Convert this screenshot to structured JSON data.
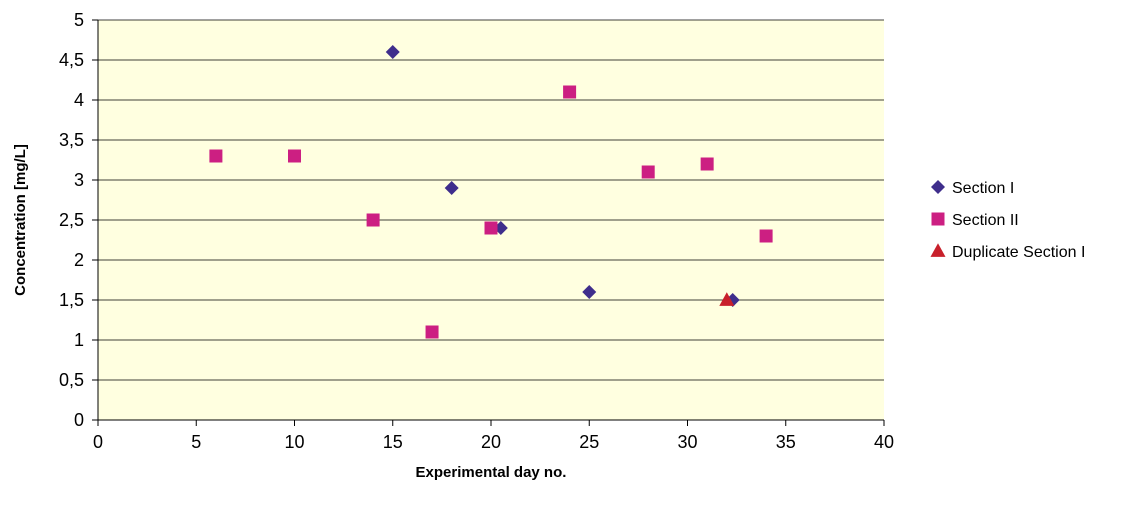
{
  "chart_data": {
    "type": "scatter",
    "title": "",
    "xlabel": "Experimental day no.",
    "ylabel": "Concentration [mg/L]",
    "xlim": [
      0,
      40
    ],
    "ylim": [
      0,
      5
    ],
    "x_ticks": [
      "0",
      "5",
      "10",
      "15",
      "20",
      "25",
      "30",
      "35",
      "40"
    ],
    "y_ticks": [
      "0",
      "0,5",
      "1",
      "1,5",
      "2",
      "2,5",
      "3",
      "3,5",
      "4",
      "4,5",
      "5"
    ],
    "grid": "horizontal",
    "plot_background": "#FFFFE0",
    "legend_position": "right",
    "series": [
      {
        "name": "Section I",
        "marker": "diamond",
        "color": "#3F2E8C",
        "points": [
          {
            "x": 15,
            "y": 4.6
          },
          {
            "x": 18,
            "y": 2.9
          },
          {
            "x": 20.5,
            "y": 2.4
          },
          {
            "x": 25,
            "y": 1.6
          },
          {
            "x": 32.3,
            "y": 1.5
          }
        ]
      },
      {
        "name": "Section II",
        "marker": "square",
        "color": "#CC1F82",
        "points": [
          {
            "x": 6,
            "y": 3.3
          },
          {
            "x": 10,
            "y": 3.3
          },
          {
            "x": 14,
            "y": 2.5
          },
          {
            "x": 17,
            "y": 1.1
          },
          {
            "x": 20,
            "y": 2.4
          },
          {
            "x": 24,
            "y": 4.1
          },
          {
            "x": 28,
            "y": 3.1
          },
          {
            "x": 31,
            "y": 3.2
          },
          {
            "x": 34,
            "y": 2.3
          }
        ]
      },
      {
        "name": "Duplicate Section I",
        "marker": "triangle",
        "color": "#C8202B",
        "points": [
          {
            "x": 32,
            "y": 1.5
          }
        ]
      }
    ]
  }
}
